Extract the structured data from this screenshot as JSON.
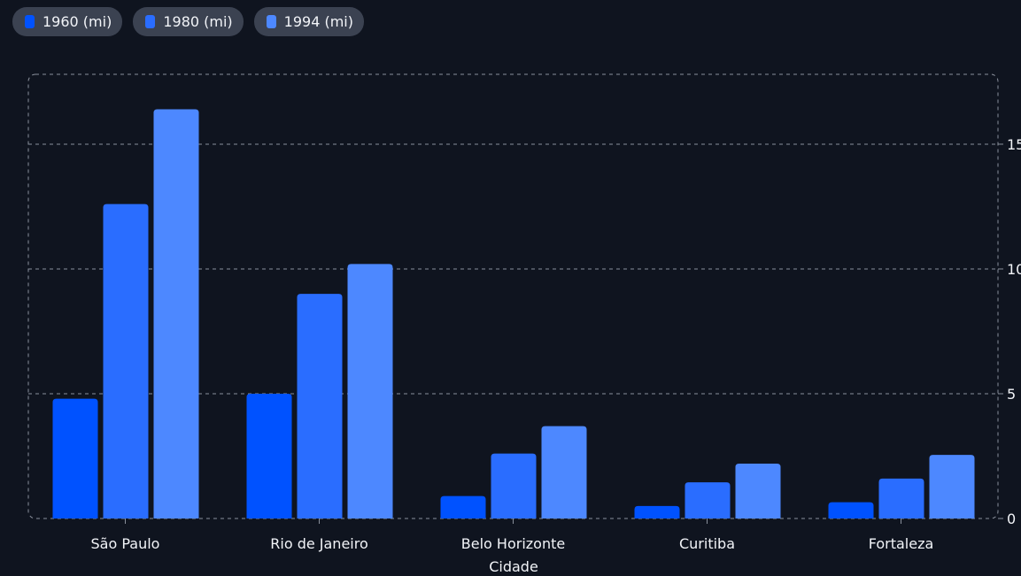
{
  "legend": [
    {
      "label": "1960 (mi)",
      "color": "#0052ff"
    },
    {
      "label": "1980 (mi)",
      "color": "#2a6dff"
    },
    {
      "label": "1994 (mi)",
      "color": "#4d88ff"
    }
  ],
  "chart_data": {
    "type": "bar",
    "categories": [
      "São Paulo",
      "Rio de Janeiro",
      "Belo Horizonte",
      "Curitiba",
      "Fortaleza"
    ],
    "series": [
      {
        "name": "1960 (mi)",
        "values": [
          4.8,
          5.0,
          0.9,
          0.5,
          0.65
        ],
        "color": "#0052ff"
      },
      {
        "name": "1980 (mi)",
        "values": [
          12.6,
          9.0,
          2.6,
          1.45,
          1.6
        ],
        "color": "#2a6dff"
      },
      {
        "name": "1994 (mi)",
        "values": [
          16.4,
          10.2,
          3.7,
          2.2,
          2.55
        ],
        "color": "#4d88ff"
      }
    ],
    "xlabel": "Cidade",
    "ylabel": "",
    "yticks": [
      0,
      5,
      10,
      15
    ],
    "ylim": [
      0,
      17.8
    ],
    "grid": true,
    "legend_position": "top-left"
  }
}
